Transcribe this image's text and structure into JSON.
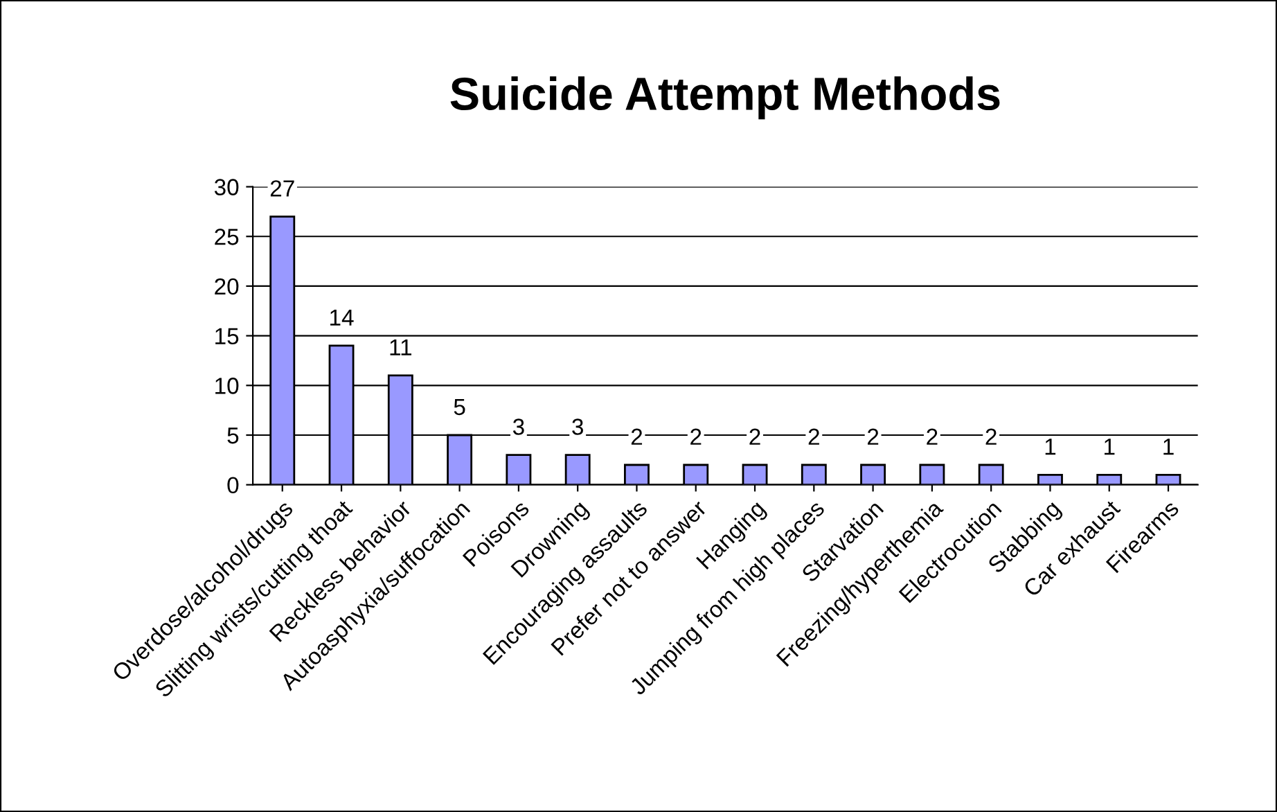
{
  "chart_data": {
    "type": "bar",
    "title": "Suicide Attempt Methods",
    "categories": [
      "Overdose/alcohol/drugs",
      "Slitting wrists/cutting thoat",
      "Reckless behavior",
      "Autoasphyxia/suffocation",
      "Poisons",
      "Drowning",
      "Encouraging assaults",
      "Prefer not to answer",
      "Hanging",
      "Jumping from high places",
      "Starvation",
      "Freezing/hyperthemia",
      "Electrocution",
      "Stabbing",
      "Car exhaust",
      "Firearms"
    ],
    "values": [
      27,
      14,
      11,
      5,
      3,
      3,
      2,
      2,
      2,
      2,
      2,
      2,
      2,
      1,
      1,
      1
    ],
    "color": "#9999ff",
    "ylim": [
      0,
      30
    ],
    "yticks": [
      0,
      5,
      10,
      15,
      20,
      25,
      30
    ],
    "grid": "y",
    "data_labels": true
  }
}
